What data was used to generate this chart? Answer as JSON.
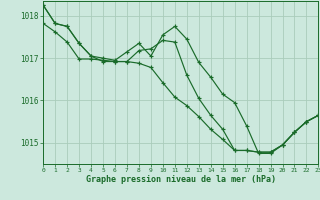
{
  "background_color": "#cce8dd",
  "grid_color": "#aaccbb",
  "line_color": "#1a6b2a",
  "marker_color": "#1a6b2a",
  "xlabel": "Graphe pression niveau de la mer (hPa)",
  "xlabel_color": "#1a6b2a",
  "tick_color": "#1a6b2a",
  "xlim": [
    0,
    23
  ],
  "ylim": [
    1014.5,
    1018.35
  ],
  "yticks": [
    1015,
    1016,
    1017,
    1018
  ],
  "xticks": [
    0,
    1,
    2,
    3,
    4,
    5,
    6,
    7,
    8,
    9,
    10,
    11,
    12,
    13,
    14,
    15,
    16,
    17,
    18,
    19,
    20,
    21,
    22,
    23
  ],
  "series": [
    [
      1018.25,
      1017.82,
      1017.75,
      1017.35,
      1017.05,
      1017.0,
      1016.95,
      1017.15,
      1017.35,
      1017.05,
      1017.55,
      1017.75,
      1017.45,
      1016.9,
      1016.55,
      1016.15,
      1015.95,
      1015.4,
      1014.75,
      1014.75,
      1014.95,
      1015.25,
      1015.5,
      1015.65
    ],
    [
      1018.25,
      1017.82,
      1017.75,
      1017.35,
      1017.05,
      1016.92,
      1016.92,
      1016.92,
      1017.18,
      1017.22,
      1017.42,
      1017.38,
      1016.6,
      1016.05,
      1015.65,
      1015.32,
      1014.82,
      1014.82,
      1014.78,
      1014.78,
      1014.95,
      1015.25,
      1015.5,
      1015.65
    ],
    [
      1017.82,
      1017.62,
      1017.38,
      1016.98,
      1016.98,
      1016.95,
      1016.92,
      1016.92,
      1016.88,
      1016.78,
      1016.42,
      1016.08,
      1015.88,
      1015.62,
      1015.32,
      1015.08,
      1014.82,
      1014.82,
      1014.78,
      1014.78,
      1014.95,
      1015.25,
      1015.5,
      1015.65
    ]
  ]
}
